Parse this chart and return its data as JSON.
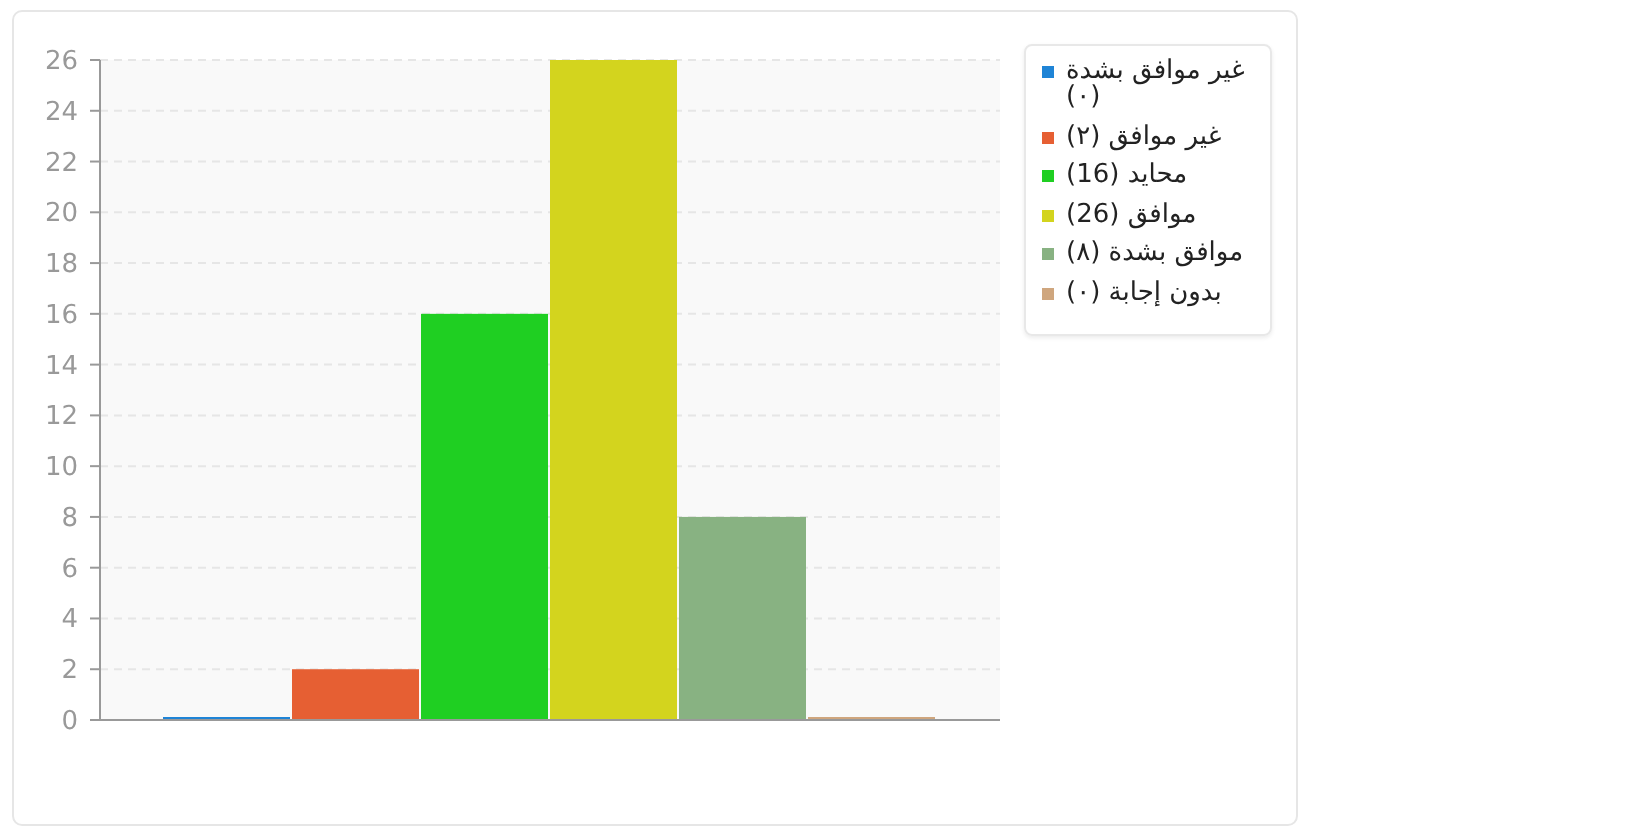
{
  "chart_data": {
    "type": "bar",
    "categories": [
      null
    ],
    "series": [
      {
        "name": "غير موافق بشدة (٠)",
        "color": "#1f84d6",
        "values": [
          0
        ]
      },
      {
        "name": "غير موافق (٢)",
        "color": "#e65f33",
        "values": [
          2
        ]
      },
      {
        "name": "محايد (16)",
        "color": "#1fcf22",
        "values": [
          16
        ]
      },
      {
        "name": "موافق (26)",
        "color": "#d3d41e",
        "values": [
          26
        ]
      },
      {
        "name": "موافق بشدة (٨)",
        "color": "#88b282",
        "values": [
          8
        ]
      },
      {
        "name": "بدون إجابة (٠)",
        "color": "#cfa67e",
        "values": [
          0
        ]
      }
    ],
    "ylim": [
      0,
      26
    ],
    "yticks": [
      0,
      2,
      4,
      6,
      8,
      10,
      12,
      14,
      16,
      18,
      20,
      22,
      24,
      26
    ],
    "grid": "y",
    "legend": "top right",
    "tick_labels": "y"
  }
}
